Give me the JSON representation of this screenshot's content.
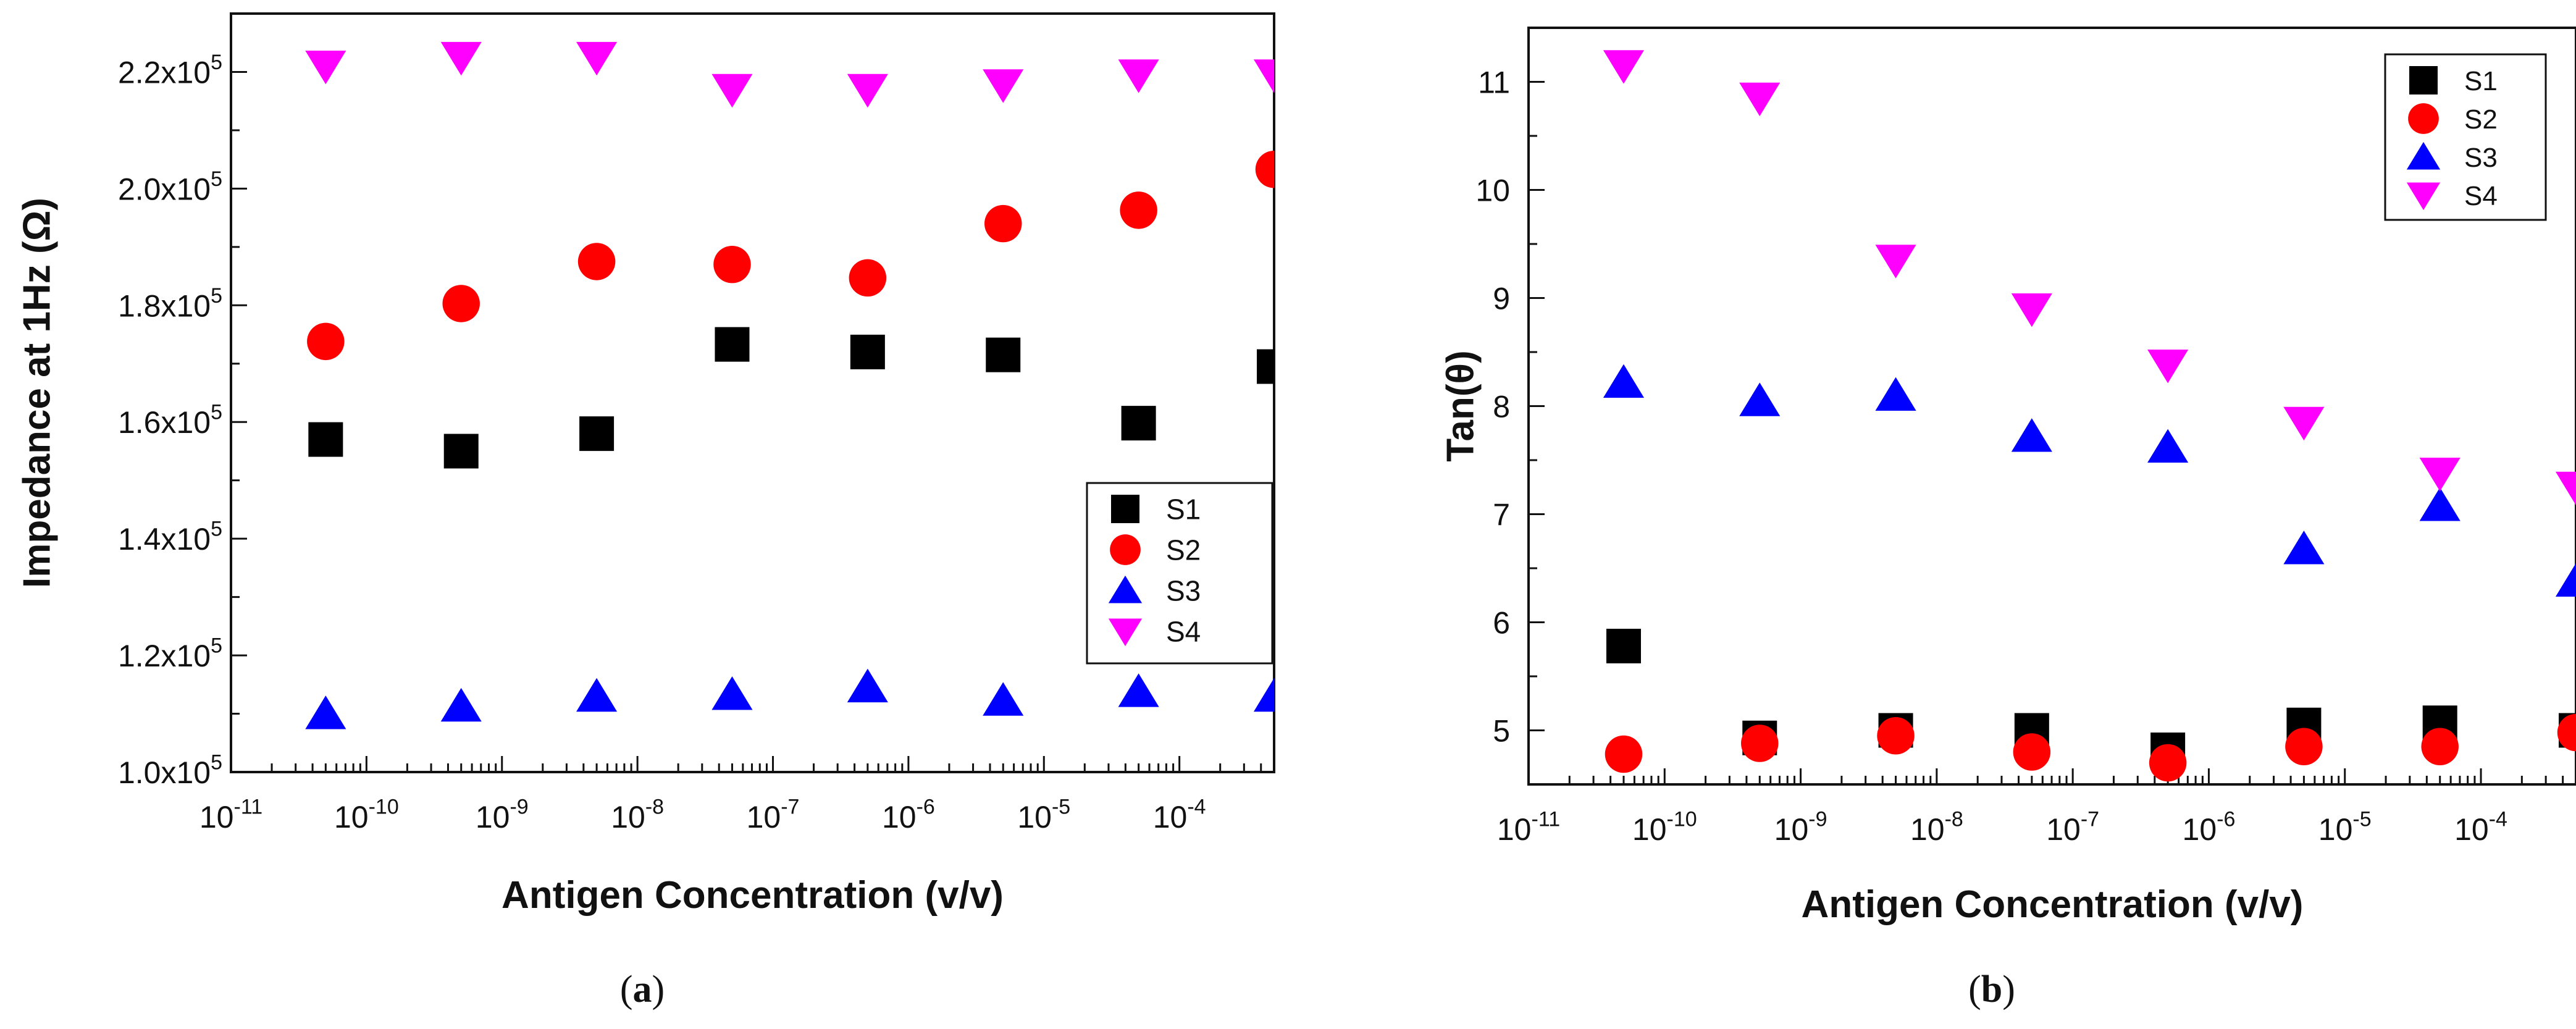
{
  "chart_data": [
    {
      "type": "scatter",
      "panel_label": "a",
      "xlabel": "Antigen Concentration (v/v)",
      "ylabel": "Impedance at 1Hz (Ω)",
      "xscale": "log",
      "xlim": [
        1e-11,
        0.0005
      ],
      "ylim": [
        100000,
        230000
      ],
      "x_ticks": [
        {
          "exp": "-11"
        },
        {
          "exp": "-10"
        },
        {
          "exp": "-9"
        },
        {
          "exp": "-8"
        },
        {
          "exp": "-7"
        },
        {
          "exp": "-6"
        },
        {
          "exp": "-5"
        },
        {
          "exp": "-4"
        }
      ],
      "y_ticks": [
        {
          "value": 100000,
          "mant": "1.0",
          "exp": "5"
        },
        {
          "value": 120000,
          "mant": "1.2",
          "exp": "5"
        },
        {
          "value": 140000,
          "mant": "1.4",
          "exp": "5"
        },
        {
          "value": 160000,
          "mant": "1.6",
          "exp": "5"
        },
        {
          "value": 180000,
          "mant": "1.8",
          "exp": "5"
        },
        {
          "value": 200000,
          "mant": "2.0",
          "exp": "5"
        },
        {
          "value": 220000,
          "mant": "2.2",
          "exp": "5"
        }
      ],
      "legend_position": "lower-right",
      "x": [
        5e-11,
        5e-10,
        5e-09,
        5e-08,
        5e-07,
        5e-06,
        5e-05,
        0.0005
      ],
      "series": [
        {
          "name": "S1",
          "marker": "square",
          "color": "#000000",
          "values": [
            157000,
            155000,
            158000,
            173300,
            172000,
            171500,
            159800,
            169500
          ]
        },
        {
          "name": "S2",
          "marker": "circle",
          "color": "#ff0000",
          "values": [
            173800,
            180300,
            187500,
            187000,
            184700,
            194000,
            196300,
            203300
          ]
        },
        {
          "name": "S3",
          "marker": "triangle-up",
          "color": "#0000ff",
          "values": [
            110000,
            111300,
            113000,
            113300,
            114600,
            112300,
            113800,
            113000
          ]
        },
        {
          "name": "S4",
          "marker": "triangle-down",
          "color": "#ff00ff",
          "values": [
            221000,
            222500,
            222500,
            217000,
            217000,
            217800,
            219500,
            219500
          ]
        }
      ]
    },
    {
      "type": "scatter",
      "panel_label": "b",
      "xlabel": "Antigen Concentration (v/v)",
      "ylabel": "Tan(θ)",
      "xscale": "log",
      "xlim": [
        1e-11,
        0.0005
      ],
      "ylim": [
        4.5,
        11.5
      ],
      "x_ticks": [
        {
          "exp": "-11"
        },
        {
          "exp": "-10"
        },
        {
          "exp": "-9"
        },
        {
          "exp": "-8"
        },
        {
          "exp": "-7"
        },
        {
          "exp": "-6"
        },
        {
          "exp": "-5"
        },
        {
          "exp": "-4"
        }
      ],
      "y_ticks": [
        {
          "value": 5,
          "label": "5"
        },
        {
          "value": 6,
          "label": "6"
        },
        {
          "value": 7,
          "label": "7"
        },
        {
          "value": 8,
          "label": "8"
        },
        {
          "value": 9,
          "label": "9"
        },
        {
          "value": 10,
          "label": "10"
        },
        {
          "value": 11,
          "label": "11"
        }
      ],
      "legend_position": "top-right",
      "x": [
        5e-11,
        5e-10,
        5e-09,
        5e-08,
        5e-07,
        5e-06,
        5e-05,
        0.0005
      ],
      "series": [
        {
          "name": "S1",
          "marker": "square",
          "color": "#000000",
          "values": [
            5.78,
            4.93,
            5.0,
            5.0,
            4.82,
            5.05,
            5.07,
            5.0
          ]
        },
        {
          "name": "S2",
          "marker": "circle",
          "color": "#ff0000",
          "values": [
            4.78,
            4.88,
            4.95,
            4.8,
            4.7,
            4.85,
            4.85,
            4.98
          ]
        },
        {
          "name": "S3",
          "marker": "triangle-up",
          "color": "#0000ff",
          "values": [
            8.22,
            8.05,
            8.1,
            7.72,
            7.62,
            6.68,
            7.08,
            6.38
          ]
        },
        {
          "name": "S4",
          "marker": "triangle-down",
          "color": "#ff00ff",
          "values": [
            11.15,
            10.85,
            9.35,
            8.9,
            8.38,
            7.85,
            7.38,
            7.25
          ]
        }
      ]
    }
  ]
}
